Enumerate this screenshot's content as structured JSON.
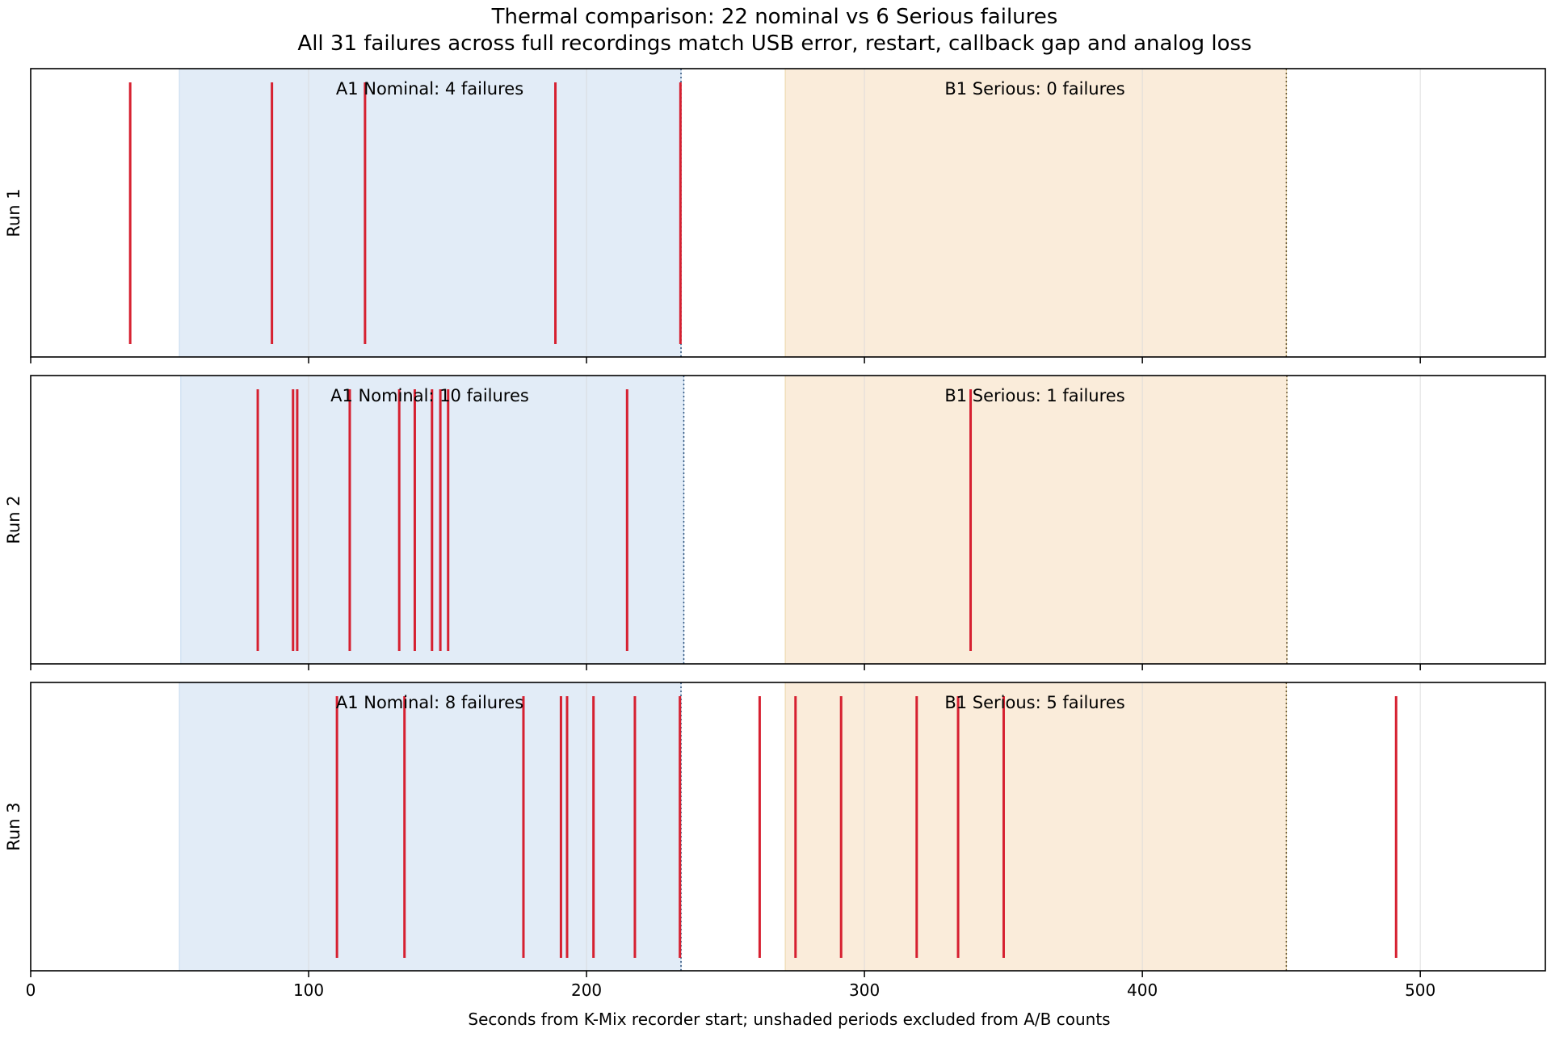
{
  "chart_data": {
    "type": "event-raster",
    "title": "Thermal comparison: 22 nominal vs 6 Serious failures",
    "subtitle": "All 31 failures across full recordings match USB error, restart, callback gap and analog loss",
    "xlabel": "Seconds from K-Mix recorder start; unshaded periods excluded from A/B counts",
    "xlim": [
      0,
      545
    ],
    "xticks": [
      0,
      100,
      200,
      300,
      400,
      500
    ],
    "grid": "vertical",
    "colors": {
      "event": "#d62030",
      "nominal_shade": "#c6d9ef",
      "serious_shade": "#f5ddbc",
      "grid": "#d8d8d8"
    },
    "panels": [
      {
        "ylabel": "Run 1",
        "nominal_window": [
          53.5,
          234.0
        ],
        "serious_window": [
          271.5,
          451.8
        ],
        "nominal_label": "A1 Nominal: 4 failures",
        "serious_label": "B1 Serious: 0 failures",
        "events": [
          35.8,
          86.8,
          120.3,
          188.8,
          233.8
        ]
      },
      {
        "ylabel": "Run 2",
        "nominal_window": [
          54.0,
          235.0
        ],
        "serious_window": [
          271.5,
          452.0
        ],
        "nominal_label": "A1 Nominal: 10 failures",
        "serious_label": "B1 Serious: 1 failures",
        "events": [
          81.7,
          94.4,
          95.9,
          114.8,
          132.6,
          138.2,
          144.4,
          147.4,
          150.2,
          214.6,
          338.2
        ]
      },
      {
        "ylabel": "Run 3",
        "nominal_window": [
          53.5,
          234.0
        ],
        "serious_window": [
          271.5,
          451.8
        ],
        "nominal_label": "A1 Nominal: 8 failures",
        "serious_label": "B1 Serious: 5 failures",
        "events": [
          110.2,
          134.5,
          177.3,
          190.8,
          193.0,
          202.5,
          217.4,
          233.6,
          262.3,
          275.2,
          291.6,
          318.8,
          333.7,
          350.1,
          491.3
        ]
      }
    ]
  }
}
